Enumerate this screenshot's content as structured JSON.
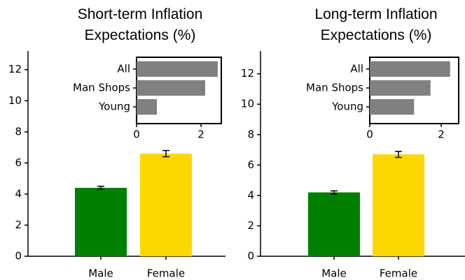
{
  "chart_data": [
    {
      "type": "bar",
      "title": "Short-term Inflation\nExpectations (%)",
      "categories": [
        "Male",
        "Female"
      ],
      "values": [
        4.4,
        6.6
      ],
      "errors": [
        0.1,
        0.2
      ],
      "colors": [
        "#008000",
        "#ffd700"
      ],
      "ylim": [
        0,
        13.2
      ],
      "yticks": [
        0,
        2,
        4,
        6,
        8,
        10,
        12
      ],
      "inset": {
        "type": "barh",
        "categories": [
          "All",
          "Man Shops",
          "Young"
        ],
        "values": [
          2.52,
          2.13,
          0.63
        ],
        "color": "#808080",
        "xlim": [
          0,
          2.63
        ],
        "xticks": [
          0,
          2
        ]
      }
    },
    {
      "type": "bar",
      "title": "Long-term Inflation\nExpectations (%)",
      "categories": [
        "Male",
        "Female"
      ],
      "values": [
        4.2,
        6.7
      ],
      "errors": [
        0.1,
        0.2
      ],
      "colors": [
        "#008000",
        "#ffd700"
      ],
      "ylim": [
        0,
        13.5
      ],
      "yticks": [
        0,
        2,
        4,
        6,
        8,
        10,
        12
      ],
      "inset": {
        "type": "barh",
        "categories": [
          "All",
          "Man Shops",
          "Young"
        ],
        "values": [
          2.25,
          1.7,
          1.24
        ],
        "color": "#808080",
        "xlim": [
          0,
          2.49
        ],
        "xticks": [
          0,
          2
        ]
      }
    }
  ]
}
